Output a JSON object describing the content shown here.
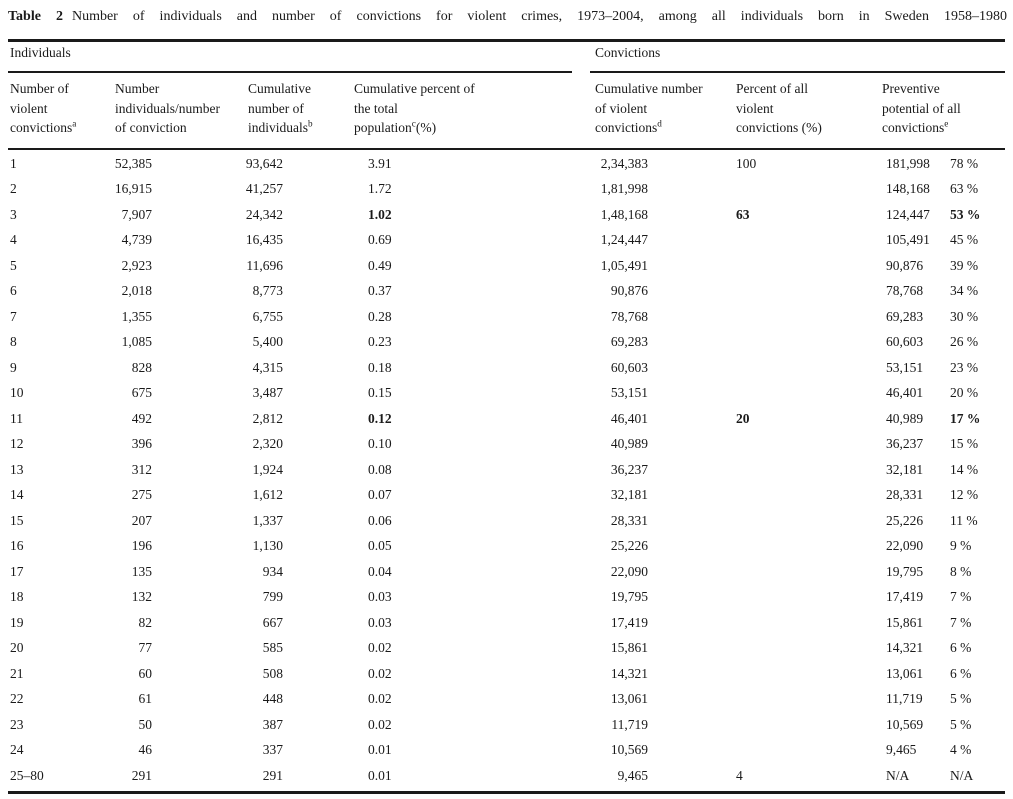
{
  "colors": {
    "text": "#1a1a1a",
    "background": "#ffffff",
    "rule": "#1a1a1a"
  },
  "title": {
    "label": "Table 2",
    "caption": "Number of individuals and number of convictions for violent crimes, 1973–2004, among all individuals born in Sweden 1958–1980"
  },
  "groups": {
    "left": "Individuals",
    "right": "Convictions"
  },
  "columns": [
    {
      "id": "number-violent-convictions",
      "lines": [
        [
          {
            "t": "Number of"
          }
        ],
        [
          {
            "t": "violent"
          }
        ],
        [
          {
            "t": "convictions"
          },
          {
            "s": "a"
          }
        ]
      ]
    },
    {
      "id": "number-individuals-per-conviction",
      "lines": [
        [
          {
            "t": "Number"
          }
        ],
        [
          {
            "t": "individuals/number"
          }
        ],
        [
          {
            "t": "of conviction"
          }
        ]
      ]
    },
    {
      "id": "cumulative-number-individuals",
      "lines": [
        [
          {
            "t": "Cumulative"
          }
        ],
        [
          {
            "t": "number of"
          }
        ],
        [
          {
            "t": "individuals"
          },
          {
            "s": "b"
          }
        ]
      ]
    },
    {
      "id": "cumulative-percent-population",
      "lines": [
        [
          {
            "t": "Cumulative percent of"
          }
        ],
        [
          {
            "t": "the total"
          }
        ],
        [
          {
            "t": "population"
          },
          {
            "s": "c"
          },
          {
            "t": "(%)"
          }
        ]
      ]
    },
    {
      "id": "cumulative-number-violent-convictions",
      "lines": [
        [
          {
            "t": "Cumulative number"
          }
        ],
        [
          {
            "t": "of violent"
          }
        ],
        [
          {
            "t": "convictions"
          },
          {
            "s": "d"
          }
        ]
      ]
    },
    {
      "id": "percent-all-violent-convictions",
      "lines": [
        [
          {
            "t": "Percent of all"
          }
        ],
        [
          {
            "t": "violent"
          }
        ],
        [
          {
            "t": "convictions (%)"
          }
        ]
      ]
    },
    {
      "id": "preventive-potential",
      "lines": [
        [
          {
            "t": "Preventive"
          }
        ],
        [
          {
            "t": "potential of all"
          }
        ],
        [
          {
            "t": "convictions"
          },
          {
            "s": "e"
          }
        ]
      ]
    }
  ],
  "cell_ids": [
    "n-convictions",
    "n-individuals",
    "cum-individuals",
    "cum-pct-population",
    "cum-convictions",
    "pct-all-convictions",
    "preventive-number",
    "preventive-pct"
  ],
  "rows": [
    {
      "v": [
        "1",
        "52,385",
        "93,642",
        "3.91",
        "2,34,383",
        "100",
        "181,998",
        "78 %"
      ]
    },
    {
      "v": [
        "2",
        "16,915",
        "41,257",
        "1.72",
        "1,81,998",
        "",
        "148,168",
        "63 %"
      ]
    },
    {
      "v": [
        "3",
        "7,907",
        "24,342",
        "1.02",
        "1,48,168",
        "63",
        "124,447",
        "53 %"
      ],
      "b": [
        3,
        5,
        7
      ]
    },
    {
      "v": [
        "4",
        "4,739",
        "16,435",
        "0.69",
        "1,24,447",
        "",
        "105,491",
        "45 %"
      ]
    },
    {
      "v": [
        "5",
        "2,923",
        "11,696",
        "0.49",
        "1,05,491",
        "",
        "90,876",
        "39 %"
      ]
    },
    {
      "v": [
        "6",
        "2,018",
        "8,773",
        "0.37",
        "90,876",
        "",
        "78,768",
        "34 %"
      ]
    },
    {
      "v": [
        "7",
        "1,355",
        "6,755",
        "0.28",
        "78,768",
        "",
        "69,283",
        "30 %"
      ]
    },
    {
      "v": [
        "8",
        "1,085",
        "5,400",
        "0.23",
        "69,283",
        "",
        "60,603",
        "26 %"
      ]
    },
    {
      "v": [
        "9",
        "828",
        "4,315",
        "0.18",
        "60,603",
        "",
        "53,151",
        "23 %"
      ]
    },
    {
      "v": [
        "10",
        "675",
        "3,487",
        "0.15",
        "53,151",
        "",
        "46,401",
        "20 %"
      ]
    },
    {
      "v": [
        "11",
        "492",
        "2,812",
        "0.12",
        "46,401",
        "20",
        "40,989",
        "17 %"
      ],
      "b": [
        3,
        5,
        7
      ]
    },
    {
      "v": [
        "12",
        "396",
        "2,320",
        "0.10",
        "40,989",
        "",
        "36,237",
        "15 %"
      ]
    },
    {
      "v": [
        "13",
        "312",
        "1,924",
        "0.08",
        "36,237",
        "",
        "32,181",
        "14 %"
      ]
    },
    {
      "v": [
        "14",
        "275",
        "1,612",
        "0.07",
        "32,181",
        "",
        "28,331",
        "12 %"
      ]
    },
    {
      "v": [
        "15",
        "207",
        "1,337",
        "0.06",
        "28,331",
        "",
        "25,226",
        "11 %"
      ]
    },
    {
      "v": [
        "16",
        "196",
        "1,130",
        "0.05",
        "25,226",
        "",
        "22,090",
        "9 %"
      ]
    },
    {
      "v": [
        "17",
        "135",
        "934",
        "0.04",
        "22,090",
        "",
        "19,795",
        "8 %"
      ]
    },
    {
      "v": [
        "18",
        "132",
        "799",
        "0.03",
        "19,795",
        "",
        "17,419",
        "7 %"
      ]
    },
    {
      "v": [
        "19",
        "82",
        "667",
        "0.03",
        "17,419",
        "",
        "15,861",
        "7 %"
      ]
    },
    {
      "v": [
        "20",
        "77",
        "585",
        "0.02",
        "15,861",
        "",
        "14,321",
        "6 %"
      ]
    },
    {
      "v": [
        "21",
        "60",
        "508",
        "0.02",
        "14,321",
        "",
        "13,061",
        "6 %"
      ]
    },
    {
      "v": [
        "22",
        "61",
        "448",
        "0.02",
        "13,061",
        "",
        "11,719",
        "5 %"
      ]
    },
    {
      "v": [
        "23",
        "50",
        "387",
        "0.02",
        "11,719",
        "",
        "10,569",
        "5 %"
      ]
    },
    {
      "v": [
        "24",
        "46",
        "337",
        "0.01",
        "10,569",
        "",
        "9,465",
        "4 %"
      ]
    },
    {
      "v": [
        "25–80",
        "291",
        "291",
        "0.01",
        "9,465",
        "4",
        "N/A",
        "N/A"
      ]
    }
  ]
}
